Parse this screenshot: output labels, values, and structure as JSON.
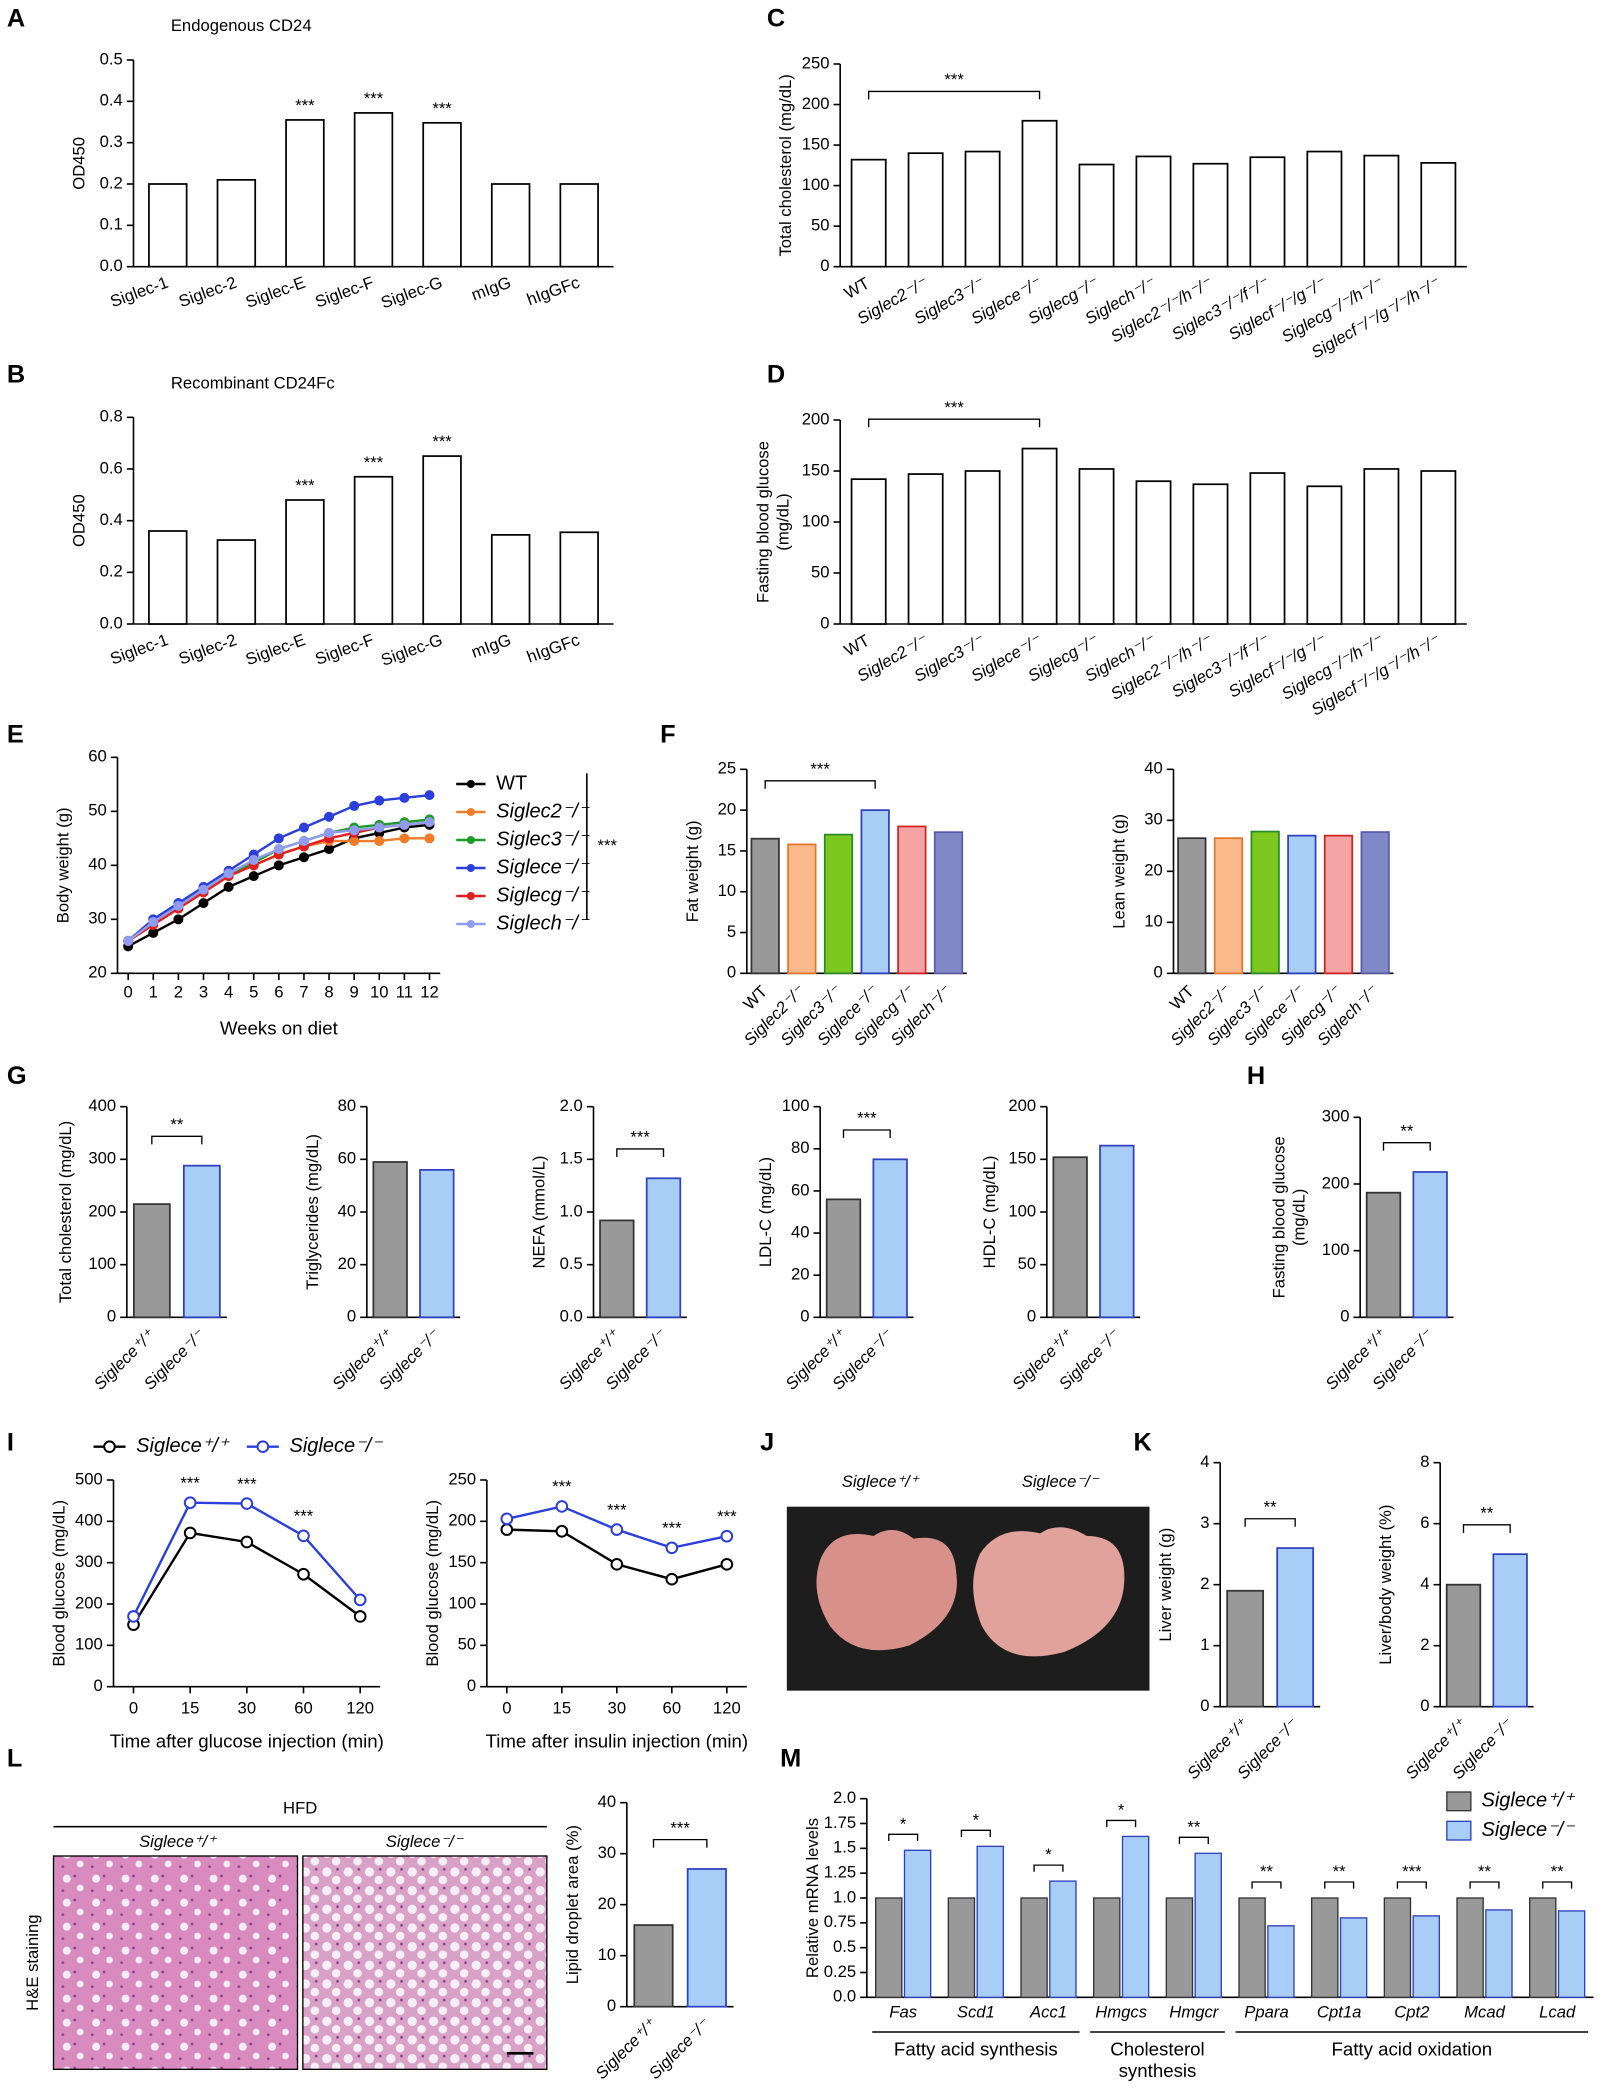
{
  "panels": [
    "A",
    "B",
    "C",
    "D",
    "E",
    "F",
    "G",
    "H",
    "I",
    "J",
    "K",
    "L",
    "M"
  ],
  "photo_J": {
    "labels": [
      "Siglece⁺/⁺",
      "Siglece⁻/⁻"
    ]
  },
  "histology_L": {
    "header": "HFD",
    "labels": [
      "Siglece⁺/⁺",
      "Siglece⁻/⁻"
    ],
    "stain": "H&E staining"
  },
  "chart_data": [
    {
      "type": "bar",
      "title": "Endogenous CD24",
      "ylabel": "OD450",
      "categories": [
        "Siglec-1",
        "Siglec-2",
        "Siglec-E",
        "Siglec-F",
        "Siglec-G",
        "mIgG",
        "hIgGFc"
      ],
      "values": [
        0.2,
        0.21,
        0.355,
        0.372,
        0.348,
        0.2,
        0.2
      ],
      "significance": [
        null,
        null,
        "***",
        "***",
        "***",
        null,
        null
      ],
      "color": "#ffffff",
      "edgecolor": "#000000",
      "ylim": [
        0,
        0.5
      ],
      "yticks": [
        {
          "value": 0,
          "label": "0.0"
        },
        0.1,
        0.2,
        0.3,
        0.4,
        0.5
      ]
    },
    {
      "type": "bar",
      "title": "Recombinant CD24Fc",
      "ylabel": "OD450",
      "categories": [
        "Siglec-1",
        "Siglec-2",
        "Siglec-E",
        "Siglec-F",
        "Siglec-G",
        "mIgG",
        "hIgGFc"
      ],
      "values": [
        0.36,
        0.325,
        0.48,
        0.57,
        0.65,
        0.345,
        0.355
      ],
      "significance": [
        null,
        null,
        "***",
        "***",
        "***",
        null,
        null
      ],
      "color": "#ffffff",
      "edgecolor": "#000000",
      "ylim": [
        0,
        0.8
      ],
      "yticks": [
        {
          "value": 0,
          "label": "0.0"
        },
        0.2,
        0.4,
        0.6,
        0.8
      ]
    },
    {
      "type": "bar",
      "ylabel": "Total cholesterol (mg/dL)",
      "categories": [
        "WT",
        "Siglec2⁻/⁻",
        "Siglec3⁻/⁻",
        "Siglece⁻/⁻",
        "Siglecg⁻/⁻",
        "Siglech⁻/⁻",
        "Siglec2⁻/⁻/h⁻/⁻",
        "Siglec3⁻/⁻/f⁻/⁻",
        "Siglecf⁻/⁻/g⁻/⁻",
        "Siglecg⁻/⁻/h⁻/⁻",
        "Siglecf⁻/⁻/g⁻/⁻/h⁻/⁻"
      ],
      "values": [
        132,
        140,
        142,
        180,
        126,
        136,
        127,
        135,
        142,
        137,
        128
      ],
      "bracket_label": "***",
      "color": "#ffffff",
      "edgecolor": "#000000",
      "ylim": [
        0,
        250
      ],
      "yticks": [
        0,
        50,
        100,
        150,
        200,
        250
      ]
    },
    {
      "type": "bar",
      "ylabel": [
        "Fasting blood glucose",
        "(mg/dL)"
      ],
      "categories": [
        "WT",
        "Siglec2⁻/⁻",
        "Siglec3⁻/⁻",
        "Siglece⁻/⁻",
        "Siglecg⁻/⁻",
        "Siglech⁻/⁻",
        "Siglec2⁻/⁻/h⁻/⁻",
        "Siglec3⁻/⁻/f⁻/⁻",
        "Siglecf⁻/⁻/g⁻/⁻",
        "Siglecg⁻/⁻/h⁻/⁻",
        "Siglecf⁻/⁻/g⁻/⁻/h⁻/⁻"
      ],
      "values": [
        142,
        147,
        150,
        172,
        152,
        140,
        137,
        148,
        135,
        152,
        150
      ],
      "bracket_label": "***",
      "color": "#ffffff",
      "edgecolor": "#000000",
      "ylim": [
        0,
        200
      ],
      "yticks": [
        0,
        50,
        100,
        150,
        200
      ]
    },
    {
      "type": "line",
      "ylabel": "Body weight (g)",
      "xlabel": "Weeks on diet",
      "x": [
        0,
        1,
        2,
        3,
        4,
        5,
        6,
        7,
        8,
        9,
        10,
        11,
        12
      ],
      "xlim": [
        0,
        12
      ],
      "xticks": [
        0,
        1,
        2,
        3,
        4,
        5,
        6,
        7,
        8,
        9,
        10,
        11,
        12
      ],
      "ylim": [
        20,
        60
      ],
      "yticks": [
        20,
        30,
        40,
        50,
        60
      ],
      "bracket_label": "***",
      "markers": "filled",
      "series": [
        {
          "name": "WT",
          "color": "#000000",
          "values": [
            25,
            27.5,
            30,
            33,
            36,
            38,
            40,
            41.5,
            43,
            45,
            46,
            47,
            47.5
          ]
        },
        {
          "name": "Siglec2⁻/⁻",
          "color": "#f07b2a",
          "values": [
            26,
            29,
            32,
            35,
            38,
            40,
            42,
            43.5,
            44.5,
            44.5,
            44.5,
            45,
            45
          ]
        },
        {
          "name": "Siglec3⁻/⁻",
          "color": "#1e9a2a",
          "values": [
            26,
            30,
            33,
            35.5,
            38,
            40.5,
            43,
            44.5,
            46,
            47,
            47.5,
            48,
            48.5
          ]
        },
        {
          "name": "Siglece⁻/⁻",
          "color": "#2b3fdc",
          "values": [
            26,
            30,
            33,
            36,
            39,
            42,
            45,
            47,
            49,
            51,
            52,
            52.5,
            53
          ]
        },
        {
          "name": "Siglecg⁻/⁻",
          "color": "#e02020",
          "values": [
            26,
            29,
            32,
            35,
            38,
            40,
            42,
            43.5,
            45,
            46,
            47,
            47.5,
            48
          ]
        },
        {
          "name": "Siglech⁻/⁻",
          "color": "#8f9cf0",
          "values": [
            26,
            29.5,
            32.5,
            35.5,
            38.5,
            41,
            43,
            44.5,
            46,
            46.5,
            47,
            47.5,
            48
          ]
        }
      ]
    },
    {
      "type": "bar",
      "ylabel": "Fat weight (g)",
      "categories": [
        "WT",
        "Siglec2⁻/⁻",
        "Siglec3⁻/⁻",
        "Siglece⁻/⁻",
        "Siglecg⁻/⁻",
        "Siglech⁻/⁻"
      ],
      "values": [
        16.5,
        15.8,
        17,
        20,
        18,
        17.3
      ],
      "bracket_label": "***",
      "colors": [
        "#999999",
        "#f9b98a",
        "#7dc81e",
        "#a8cdf6",
        "#f4a4a4",
        "#8088c8"
      ],
      "edgecolors": [
        "#333333",
        "#e8752a",
        "#2a8a2a",
        "#2e3fc0",
        "#d62020",
        "#5a5aa8"
      ],
      "ylim": [
        0,
        25
      ],
      "yticks": [
        0,
        5,
        10,
        15,
        20,
        25
      ]
    },
    {
      "type": "bar",
      "ylabel": "Lean weight (g)",
      "categories": [
        "WT",
        "Siglec2⁻/⁻",
        "Siglec3⁻/⁻",
        "Siglece⁻/⁻",
        "Siglecg⁻/⁻",
        "Siglech⁻/⁻"
      ],
      "values": [
        26.5,
        26.5,
        27.8,
        27,
        27,
        27.7
      ],
      "colors": [
        "#999999",
        "#f9b98a",
        "#7dc81e",
        "#a8cdf6",
        "#f4a4a4",
        "#8088c8"
      ],
      "edgecolors": [
        "#333333",
        "#e8752a",
        "#2a8a2a",
        "#2e3fc0",
        "#d62020",
        "#5a5aa8"
      ],
      "ylim": [
        0,
        40
      ],
      "yticks": [
        0,
        10,
        20,
        30,
        40
      ]
    },
    {
      "type": "bar",
      "ylabel": "Total cholesterol (mg/dL)",
      "categories": [
        "Siglece⁺/⁺",
        "Siglece⁻/⁻"
      ],
      "values": [
        215,
        288
      ],
      "bracket_label": "**",
      "colors": [
        "#999999",
        "#a8cdf6"
      ],
      "edgecolors": [
        "#333333",
        "#2e3fc0"
      ],
      "ylim": [
        0,
        400
      ],
      "yticks": [
        0,
        100,
        200,
        300,
        400
      ]
    },
    {
      "type": "bar",
      "ylabel": "Triglycerides (mg/dL)",
      "categories": [
        "Siglece⁺/⁺",
        "Siglece⁻/⁻"
      ],
      "values": [
        59,
        56
      ],
      "colors": [
        "#999999",
        "#a8cdf6"
      ],
      "edgecolors": [
        "#333333",
        "#2e3fc0"
      ],
      "ylim": [
        0,
        80
      ],
      "yticks": [
        0,
        20,
        40,
        60,
        80
      ]
    },
    {
      "type": "bar",
      "ylabel": "NEFA (mmol/L)",
      "categories": [
        "Siglece⁺/⁺",
        "Siglece⁻/⁻"
      ],
      "values": [
        0.92,
        1.32
      ],
      "bracket_label": "***",
      "colors": [
        "#999999",
        "#a8cdf6"
      ],
      "edgecolors": [
        "#333333",
        "#2e3fc0"
      ],
      "ylim": [
        0,
        2
      ],
      "yticks": [
        {
          "value": 0,
          "label": "0.0"
        },
        0.5,
        {
          "value": 1,
          "label": "1.0"
        },
        1.5,
        {
          "value": 2,
          "label": "2.0"
        }
      ]
    },
    {
      "type": "bar",
      "ylabel": "LDL-C (mg/dL)",
      "categories": [
        "Siglece⁺/⁺",
        "Siglece⁻/⁻"
      ],
      "values": [
        56,
        75
      ],
      "bracket_label": "***",
      "colors": [
        "#999999",
        "#a8cdf6"
      ],
      "edgecolors": [
        "#333333",
        "#2e3fc0"
      ],
      "ylim": [
        0,
        100
      ],
      "yticks": [
        0,
        20,
        40,
        60,
        80,
        100
      ]
    },
    {
      "type": "bar",
      "ylabel": "HDL-C (mg/dL)",
      "categories": [
        "Siglece⁺/⁺",
        "Siglece⁻/⁻"
      ],
      "values": [
        152,
        163
      ],
      "colors": [
        "#999999",
        "#a8cdf6"
      ],
      "edgecolors": [
        "#333333",
        "#2e3fc0"
      ],
      "ylim": [
        0,
        200
      ],
      "yticks": [
        0,
        50,
        100,
        150,
        200
      ]
    },
    {
      "type": "bar",
      "ylabel": [
        "Fasting blood glucose",
        "(mg/dL)"
      ],
      "categories": [
        "Siglece⁺/⁺",
        "Siglece⁻/⁻"
      ],
      "values": [
        187,
        218
      ],
      "bracket_label": "**",
      "colors": [
        "#999999",
        "#a8cdf6"
      ],
      "edgecolors": [
        "#333333",
        "#2e3fc0"
      ],
      "ylim": [
        0,
        300
      ],
      "yticks": [
        0,
        100,
        200,
        300
      ]
    },
    {
      "type": "line",
      "ylabel": "Blood glucose (mg/dL)",
      "xlabel": "Time after glucose injection (min)",
      "categories": [
        "0",
        "15",
        "30",
        "60",
        "120"
      ],
      "ylim": [
        0,
        500
      ],
      "yticks": [
        0,
        100,
        200,
        300,
        400,
        500
      ],
      "significance": [
        null,
        "***",
        "***",
        "***",
        null
      ],
      "markers": "open",
      "series": [
        {
          "name": "Siglece⁺/⁺",
          "color": "#000000",
          "values": [
            150,
            372,
            350,
            272,
            170
          ]
        },
        {
          "name": "Siglece⁻/⁻",
          "color": "#2b3fdc",
          "values": [
            170,
            445,
            443,
            365,
            210
          ]
        }
      ]
    },
    {
      "type": "line",
      "ylabel": "Blood glucose (mg/dL)",
      "xlabel": "Time after insulin injection (min)",
      "categories": [
        "0",
        "15",
        "30",
        "60",
        "120"
      ],
      "ylim": [
        0,
        250
      ],
      "yticks": [
        0,
        50,
        100,
        150,
        200,
        250
      ],
      "significance": [
        null,
        "***",
        "***",
        "***",
        "***"
      ],
      "markers": "open",
      "series": [
        {
          "name": "Siglece⁺/⁺",
          "color": "#000000",
          "values": [
            190,
            188,
            148,
            130,
            148
          ]
        },
        {
          "name": "Siglece⁻/⁻",
          "color": "#2b3fdc",
          "values": [
            203,
            218,
            190,
            168,
            182
          ]
        }
      ]
    },
    {
      "type": "bar",
      "ylabel": "Liver weight (g)",
      "categories": [
        "Siglece⁺/⁺",
        "Siglece⁻/⁻"
      ],
      "values": [
        1.9,
        2.6
      ],
      "bracket_label": "**",
      "colors": [
        "#999999",
        "#a8cdf6"
      ],
      "edgecolors": [
        "#333333",
        "#2e3fc0"
      ],
      "ylim": [
        0,
        4
      ],
      "yticks": [
        0,
        1,
        2,
        3,
        4
      ]
    },
    {
      "type": "bar",
      "ylabel": "Liver/body weight (%)",
      "categories": [
        "Siglece⁺/⁺",
        "Siglece⁻/⁻"
      ],
      "values": [
        4.0,
        5.0
      ],
      "bracket_label": "**",
      "colors": [
        "#999999",
        "#a8cdf6"
      ],
      "edgecolors": [
        "#333333",
        "#2e3fc0"
      ],
      "ylim": [
        0,
        8
      ],
      "yticks": [
        0,
        2,
        4,
        6,
        8
      ]
    },
    {
      "type": "bar",
      "ylabel": "Lipid droplet area (%)",
      "categories": [
        "Siglece⁺/⁺",
        "Siglece⁻/⁻"
      ],
      "values": [
        16,
        27
      ],
      "bracket_label": "***",
      "colors": [
        "#999999",
        "#a8cdf6"
      ],
      "edgecolors": [
        "#333333",
        "#2e3fc0"
      ],
      "ylim": [
        0,
        40
      ],
      "yticks": [
        0,
        10,
        20,
        30,
        40
      ]
    },
    {
      "type": "bar",
      "ylabel": "Relative mRNA levels",
      "categories": [
        "Fas",
        "Scd1",
        "Acc1",
        "Hmgcs",
        "Hmgcr",
        "Ppara",
        "Cpt1a",
        "Cpt2",
        "Mcad",
        "Lcad"
      ],
      "group_labels": [
        [
          "Fatty acid synthesis"
        ],
        [
          "Cholesterol",
          "synthesis"
        ],
        [
          "Fatty acid oxidation"
        ]
      ],
      "significance": [
        "*",
        "*",
        "*",
        "*",
        "**",
        "**",
        "**",
        "***",
        "**",
        "**"
      ],
      "ylim": [
        0,
        2
      ],
      "yticks": [
        {
          "value": 0,
          "label": "0.0"
        },
        0.25,
        0.5,
        0.75,
        {
          "value": 1,
          "label": "1.0"
        },
        1.25,
        1.5,
        1.75,
        {
          "value": 2,
          "label": "2.0"
        }
      ],
      "legend": "upper right",
      "series": [
        {
          "name": "Siglece⁺/⁺",
          "color": "#999999",
          "edgecolor": "#333333",
          "values": [
            1,
            1,
            1,
            1,
            1,
            1,
            1,
            1,
            1,
            1
          ]
        },
        {
          "name": "Siglece⁻/⁻",
          "color": "#a8cdf6",
          "edgecolor": "#2e3fc0",
          "values": [
            1.48,
            1.52,
            1.17,
            1.62,
            1.45,
            0.72,
            0.8,
            0.82,
            0.88,
            0.87
          ]
        }
      ]
    }
  ]
}
